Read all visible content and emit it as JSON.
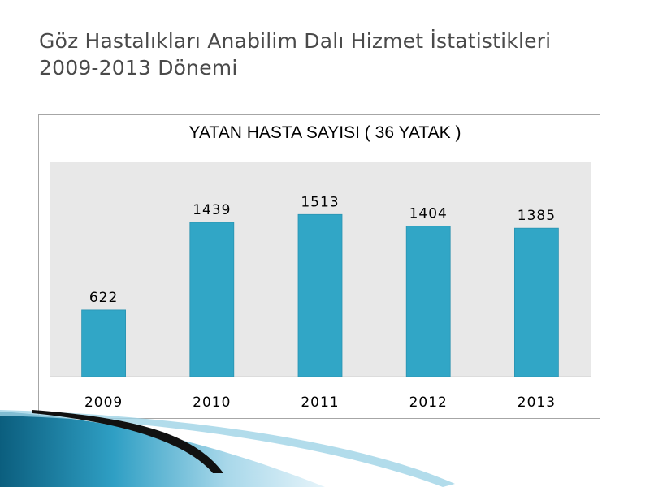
{
  "slide": {
    "title_line1": "Göz Hastalıkları Anabilim Dalı Hizmet İstatistikleri",
    "title_line2": "2009-2013 Dönemi"
  },
  "colors": {
    "bar": "#31a6c6",
    "plot_background": "#e8e8e8",
    "title_text": "#4a4a4a"
  },
  "chart_data": {
    "type": "bar",
    "title": "YATAN HASTA SAYISI ( 36 YATAK )",
    "categories": [
      "2009",
      "2010",
      "2011",
      "2012",
      "2013"
    ],
    "values": [
      622,
      1439,
      1513,
      1404,
      1385
    ],
    "data_labels": [
      "622",
      "1439",
      "1513",
      "1404",
      "1385"
    ],
    "xlabel": "",
    "ylabel": "",
    "ylim": [
      0,
      2000
    ],
    "grid": false,
    "legend": "none"
  }
}
